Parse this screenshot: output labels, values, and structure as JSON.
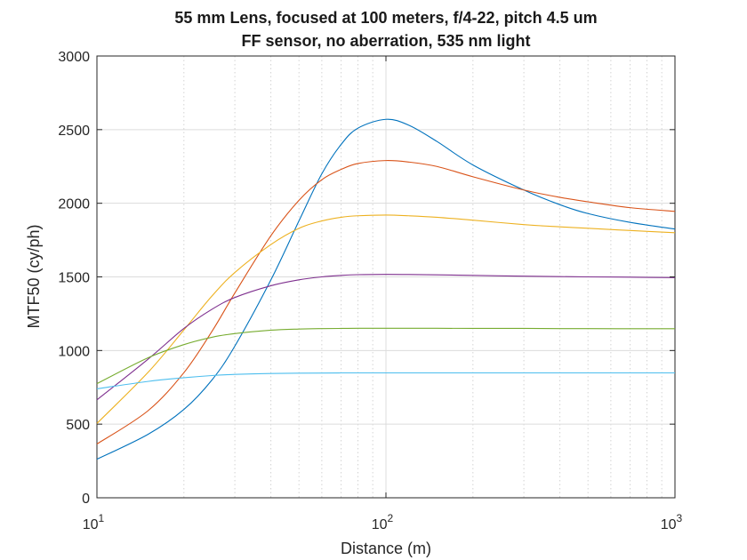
{
  "chart_data": {
    "type": "line",
    "title": "55 mm Lens, focused at 100 meters, f/4-22, pitch 4.5 um",
    "subtitle": "FF sensor, no aberration, 535 nm light",
    "xlabel": "Distance (m)",
    "ylabel": "MTF50 (cy/ph)",
    "xscale": "log",
    "xlim": [
      10,
      1000
    ],
    "ylim": [
      0,
      3000
    ],
    "grid": true,
    "xticks": [
      {
        "value": 10,
        "base": "10",
        "exp": "1"
      },
      {
        "value": 100,
        "base": "10",
        "exp": "2"
      },
      {
        "value": 1000,
        "base": "10",
        "exp": "3"
      }
    ],
    "yticks": [
      0,
      500,
      1000,
      1500,
      2000,
      2500,
      3000
    ],
    "x": [
      10,
      15,
      20,
      25,
      30,
      40,
      50,
      60,
      70,
      80,
      100,
      120,
      150,
      200,
      300,
      400,
      500,
      700,
      1000
    ],
    "series": [
      {
        "color": "#0072BD",
        "values": [
          262,
          430,
          600,
          800,
          1030,
          1480,
          1880,
          2200,
          2400,
          2510,
          2570,
          2530,
          2420,
          2260,
          2090,
          1990,
          1930,
          1870,
          1825
        ]
      },
      {
        "color": "#D95319",
        "values": [
          365,
          590,
          850,
          1130,
          1390,
          1780,
          2020,
          2160,
          2230,
          2270,
          2290,
          2280,
          2250,
          2180,
          2090,
          2040,
          2010,
          1970,
          1945
        ]
      },
      {
        "color": "#EDB120",
        "values": [
          505,
          850,
          1140,
          1370,
          1530,
          1720,
          1830,
          1880,
          1905,
          1915,
          1920,
          1915,
          1905,
          1885,
          1855,
          1840,
          1830,
          1815,
          1800
        ]
      },
      {
        "color": "#7E2F8E",
        "values": [
          665,
          940,
          1150,
          1280,
          1360,
          1440,
          1480,
          1500,
          1510,
          1515,
          1517,
          1516,
          1514,
          1510,
          1505,
          1502,
          1500,
          1498,
          1495
        ]
      },
      {
        "color": "#77AC30",
        "values": [
          775,
          950,
          1040,
          1090,
          1115,
          1138,
          1146,
          1149,
          1150,
          1151,
          1151,
          1151,
          1151,
          1150,
          1150,
          1149,
          1149,
          1148,
          1148
        ]
      },
      {
        "color": "#4DBEEE",
        "values": [
          740,
          790,
          815,
          830,
          838,
          844,
          846,
          847,
          848,
          848,
          848,
          848,
          848,
          848,
          848,
          848,
          848,
          848,
          848
        ]
      }
    ]
  }
}
